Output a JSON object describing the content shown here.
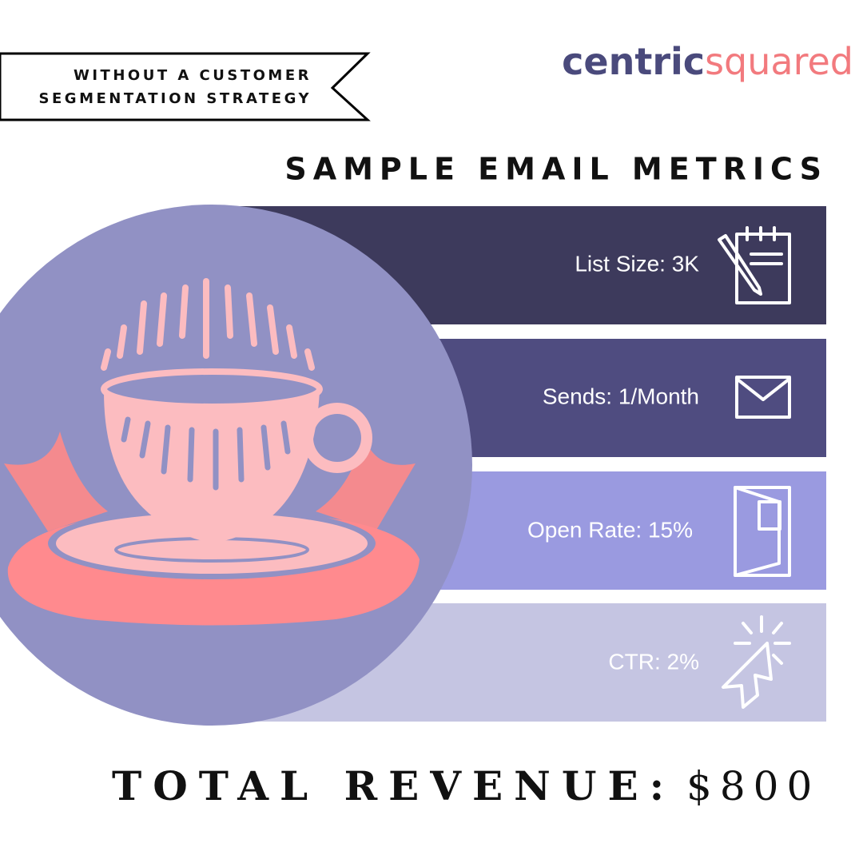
{
  "banner": {
    "lines": [
      "WITHOUT A CUSTOMER",
      "SEGMENTATION STRATEGY"
    ]
  },
  "logo": {
    "part1": "centric",
    "part2": "squared"
  },
  "title": "SAMPLE EMAIL METRICS",
  "metrics": [
    {
      "label": "List Size: 3K"
    },
    {
      "label": "Sends: 1/Month"
    },
    {
      "label": "Open Rate: 15%"
    },
    {
      "label": "CTR: 2%"
    }
  ],
  "total": {
    "label": "TOTAL REVENUE:",
    "value": "$800"
  }
}
